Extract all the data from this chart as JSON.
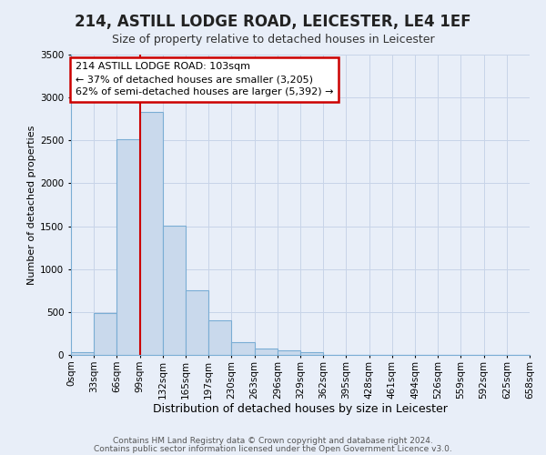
{
  "title": "214, ASTILL LODGE ROAD, LEICESTER, LE4 1EF",
  "subtitle": "Size of property relative to detached houses in Leicester",
  "xlabel": "Distribution of detached houses by size in Leicester",
  "ylabel": "Number of detached properties",
  "bin_labels": [
    "0sqm",
    "33sqm",
    "66sqm",
    "99sqm",
    "132sqm",
    "165sqm",
    "197sqm",
    "230sqm",
    "263sqm",
    "296sqm",
    "329sqm",
    "362sqm",
    "395sqm",
    "428sqm",
    "461sqm",
    "494sqm",
    "526sqm",
    "559sqm",
    "592sqm",
    "625sqm",
    "658sqm"
  ],
  "bar_heights": [
    30,
    490,
    2510,
    2830,
    1510,
    750,
    400,
    145,
    75,
    55,
    30,
    0,
    0,
    0,
    0,
    0,
    0,
    0,
    0,
    0
  ],
  "bar_color": "#c9d9ec",
  "bar_edge_color": "#7aadd4",
  "ylim": [
    0,
    3500
  ],
  "yticks": [
    0,
    500,
    1000,
    1500,
    2000,
    2500,
    3000,
    3500
  ],
  "property_line_bin": 3,
  "annotation_title": "214 ASTILL LODGE ROAD: 103sqm",
  "annotation_line1": "← 37% of detached houses are smaller (3,205)",
  "annotation_line2": "62% of semi-detached houses are larger (5,392) →",
  "annotation_box_facecolor": "#ffffff",
  "annotation_box_edgecolor": "#cc0000",
  "vline_color": "#cc0000",
  "footer1": "Contains HM Land Registry data © Crown copyright and database right 2024.",
  "footer2": "Contains public sector information licensed under the Open Government Licence v3.0.",
  "grid_color": "#c8d4e8",
  "background_color": "#e8eef8",
  "title_fontsize": 12,
  "subtitle_fontsize": 9,
  "ylabel_fontsize": 8,
  "xlabel_fontsize": 9,
  "tick_fontsize": 7.5,
  "annotation_fontsize": 8,
  "footer_fontsize": 6.5
}
